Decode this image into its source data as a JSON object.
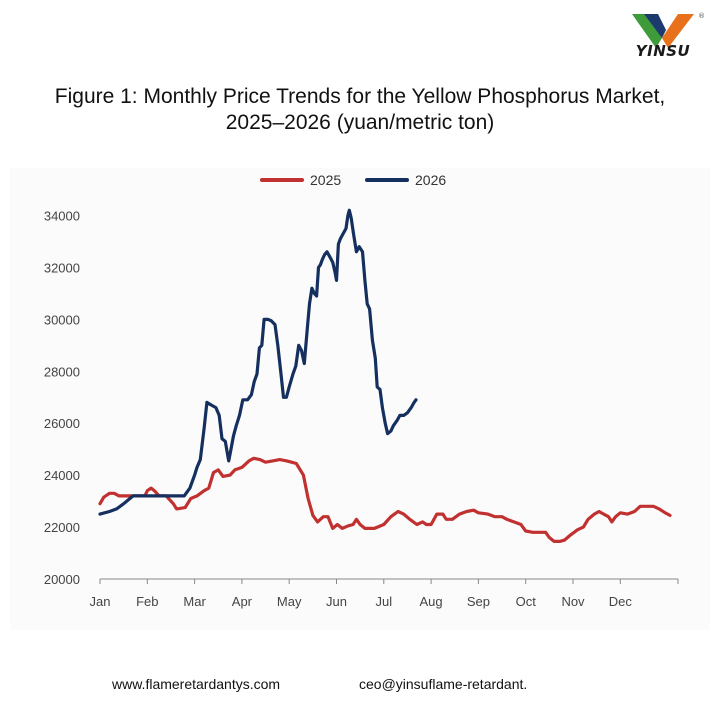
{
  "brand": {
    "logo_text": "YINSU",
    "logo_icon": "yinsu-chevron-logo-icon",
    "colors": {
      "green": "#3f9b3a",
      "orange": "#e8711c",
      "navy": "#1c3a6e"
    }
  },
  "title_lines": [
    "Figure 1: Monthly Price Trends for the Yellow Phosphorus Market,",
    "2025–2026 (yuan/metric ton)"
  ],
  "footer": {
    "website": "www.flameretardantys.com",
    "email": "ceo@yinsuflame-retardant."
  },
  "chart_data": {
    "type": "line",
    "title": "",
    "xlabel": "",
    "ylabel": "",
    "categories": [
      "Jan",
      "Feb",
      "Mar",
      "Apr",
      "May",
      "Jun",
      "Jul",
      "Aug",
      "Sep",
      "Oct",
      "Nov",
      "Dec"
    ],
    "x_unit": "month index (0 = start of Jan)",
    "ylim": [
      20000,
      34000
    ],
    "yticks": [
      20000,
      22000,
      24000,
      26000,
      28000,
      30000,
      32000,
      34000
    ],
    "grid": false,
    "legend_position": "top-center",
    "series": [
      {
        "name": "2025",
        "color": "#c0312f",
        "points": [
          [
            0,
            22900
          ],
          [
            0.08,
            23150
          ],
          [
            0.2,
            23300
          ],
          [
            0.3,
            23300
          ],
          [
            0.4,
            23200
          ],
          [
            0.55,
            23200
          ],
          [
            0.7,
            23200
          ],
          [
            0.85,
            23200
          ],
          [
            0.95,
            23200
          ],
          [
            1.0,
            23400
          ],
          [
            1.08,
            23500
          ],
          [
            1.15,
            23400
          ],
          [
            1.25,
            23200
          ],
          [
            1.4,
            23200
          ],
          [
            1.55,
            22900
          ],
          [
            1.62,
            22700
          ],
          [
            1.8,
            22750
          ],
          [
            1.92,
            23100
          ],
          [
            2.05,
            23200
          ],
          [
            2.2,
            23400
          ],
          [
            2.3,
            23500
          ],
          [
            2.4,
            24100
          ],
          [
            2.5,
            24200
          ],
          [
            2.6,
            23950
          ],
          [
            2.75,
            24000
          ],
          [
            2.85,
            24200
          ],
          [
            3.0,
            24300
          ],
          [
            3.15,
            24550
          ],
          [
            3.25,
            24650
          ],
          [
            3.38,
            24600
          ],
          [
            3.5,
            24500
          ],
          [
            3.65,
            24550
          ],
          [
            3.8,
            24600
          ],
          [
            3.95,
            24550
          ],
          [
            4.05,
            24500
          ],
          [
            4.15,
            24450
          ],
          [
            4.3,
            24000
          ],
          [
            4.4,
            23100
          ],
          [
            4.5,
            22450
          ],
          [
            4.6,
            22200
          ],
          [
            4.72,
            22400
          ],
          [
            4.82,
            22400
          ],
          [
            4.92,
            21950
          ],
          [
            5.02,
            22100
          ],
          [
            5.12,
            21950
          ],
          [
            5.25,
            22050
          ],
          [
            5.35,
            22100
          ],
          [
            5.42,
            22300
          ],
          [
            5.5,
            22100
          ],
          [
            5.6,
            21950
          ],
          [
            5.8,
            21950
          ],
          [
            6.0,
            22100
          ],
          [
            6.15,
            22400
          ],
          [
            6.3,
            22600
          ],
          [
            6.42,
            22500
          ],
          [
            6.55,
            22300
          ],
          [
            6.7,
            22100
          ],
          [
            6.82,
            22200
          ],
          [
            6.9,
            22100
          ],
          [
            7.0,
            22100
          ],
          [
            7.12,
            22500
          ],
          [
            7.25,
            22500
          ],
          [
            7.32,
            22300
          ],
          [
            7.45,
            22300
          ],
          [
            7.6,
            22500
          ],
          [
            7.75,
            22600
          ],
          [
            7.9,
            22650
          ],
          [
            8.0,
            22550
          ],
          [
            8.2,
            22500
          ],
          [
            8.35,
            22400
          ],
          [
            8.5,
            22400
          ],
          [
            8.6,
            22300
          ],
          [
            8.75,
            22200
          ],
          [
            8.9,
            22100
          ],
          [
            9.0,
            21850
          ],
          [
            9.15,
            21800
          ],
          [
            9.3,
            21800
          ],
          [
            9.42,
            21800
          ],
          [
            9.5,
            21600
          ],
          [
            9.6,
            21450
          ],
          [
            9.72,
            21450
          ],
          [
            9.82,
            21500
          ],
          [
            9.95,
            21700
          ],
          [
            10.1,
            21900
          ],
          [
            10.22,
            22000
          ],
          [
            10.32,
            22300
          ],
          [
            10.45,
            22500
          ],
          [
            10.55,
            22600
          ],
          [
            10.65,
            22500
          ],
          [
            10.75,
            22400
          ],
          [
            10.82,
            22200
          ],
          [
            10.9,
            22400
          ],
          [
            11.0,
            22550
          ],
          [
            11.15,
            22500
          ],
          [
            11.3,
            22600
          ],
          [
            11.42,
            22800
          ],
          [
            11.55,
            22800
          ],
          [
            11.7,
            22800
          ],
          [
            11.82,
            22700
          ],
          [
            11.95,
            22550
          ],
          [
            12.05,
            22450
          ]
        ]
      },
      {
        "name": "2026",
        "color": "#15305f",
        "points": [
          [
            0,
            22500
          ],
          [
            0.2,
            22600
          ],
          [
            0.35,
            22700
          ],
          [
            0.5,
            22900
          ],
          [
            0.7,
            23200
          ],
          [
            0.85,
            23200
          ],
          [
            1.0,
            23200
          ],
          [
            1.2,
            23200
          ],
          [
            1.35,
            23200
          ],
          [
            1.5,
            23200
          ],
          [
            1.65,
            23200
          ],
          [
            1.78,
            23200
          ],
          [
            1.9,
            23500
          ],
          [
            2.0,
            24000
          ],
          [
            2.05,
            24300
          ],
          [
            2.12,
            24600
          ],
          [
            2.2,
            25800
          ],
          [
            2.26,
            26800
          ],
          [
            2.35,
            26700
          ],
          [
            2.45,
            26600
          ],
          [
            2.52,
            26300
          ],
          [
            2.58,
            25400
          ],
          [
            2.65,
            25300
          ],
          [
            2.72,
            24550
          ],
          [
            2.76,
            24900
          ],
          [
            2.82,
            25500
          ],
          [
            2.88,
            25900
          ],
          [
            2.95,
            26300
          ],
          [
            3.02,
            26900
          ],
          [
            3.12,
            26900
          ],
          [
            3.2,
            27100
          ],
          [
            3.26,
            27600
          ],
          [
            3.32,
            27900
          ],
          [
            3.37,
            28900
          ],
          [
            3.42,
            29000
          ],
          [
            3.47,
            30000
          ],
          [
            3.55,
            30000
          ],
          [
            3.62,
            29950
          ],
          [
            3.7,
            29800
          ],
          [
            3.76,
            29000
          ],
          [
            3.82,
            28000
          ],
          [
            3.88,
            27000
          ],
          [
            3.94,
            27000
          ],
          [
            4.0,
            27400
          ],
          [
            4.08,
            27900
          ],
          [
            4.14,
            28200
          ],
          [
            4.2,
            29000
          ],
          [
            4.26,
            28800
          ],
          [
            4.32,
            28300
          ],
          [
            4.38,
            29600
          ],
          [
            4.43,
            30600
          ],
          [
            4.48,
            31200
          ],
          [
            4.53,
            31000
          ],
          [
            4.58,
            30900
          ],
          [
            4.62,
            32000
          ],
          [
            4.66,
            32100
          ],
          [
            4.7,
            32300
          ],
          [
            4.75,
            32500
          ],
          [
            4.8,
            32600
          ],
          [
            4.86,
            32400
          ],
          [
            4.92,
            32200
          ],
          [
            4.97,
            31800
          ],
          [
            5.0,
            31500
          ],
          [
            5.04,
            32900
          ],
          [
            5.08,
            33100
          ],
          [
            5.14,
            33300
          ],
          [
            5.2,
            33500
          ],
          [
            5.24,
            34000
          ],
          [
            5.27,
            34200
          ],
          [
            5.31,
            33900
          ],
          [
            5.36,
            33300
          ],
          [
            5.42,
            32600
          ],
          [
            5.48,
            32800
          ],
          [
            5.55,
            32600
          ],
          [
            5.6,
            31500
          ],
          [
            5.65,
            30600
          ],
          [
            5.7,
            30400
          ],
          [
            5.76,
            29200
          ],
          [
            5.82,
            28500
          ],
          [
            5.86,
            27400
          ],
          [
            5.92,
            27300
          ],
          [
            5.97,
            26600
          ],
          [
            6.03,
            26000
          ],
          [
            6.08,
            25600
          ],
          [
            6.15,
            25700
          ],
          [
            6.2,
            25900
          ],
          [
            6.28,
            26100
          ],
          [
            6.34,
            26300
          ],
          [
            6.42,
            26300
          ],
          [
            6.5,
            26400
          ],
          [
            6.58,
            26600
          ],
          [
            6.64,
            26800
          ],
          [
            6.68,
            26900
          ]
        ]
      }
    ]
  }
}
